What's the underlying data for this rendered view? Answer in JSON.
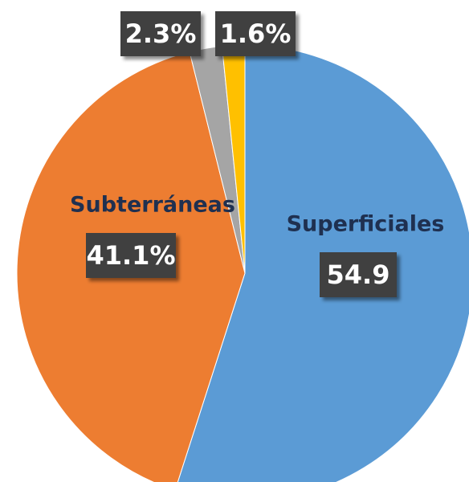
{
  "chart_data": {
    "type": "pie",
    "categories": [
      "Superficiales",
      "Subterráneas",
      null,
      null
    ],
    "values": [
      54.9,
      41.1,
      2.3,
      1.6
    ],
    "value_labels": [
      "54.9",
      "41.1%",
      "2.3%",
      "1.6%"
    ],
    "colors": [
      "#5b9bd5",
      "#ed7d31",
      "#a5a5a5",
      "#ffc000"
    ]
  }
}
